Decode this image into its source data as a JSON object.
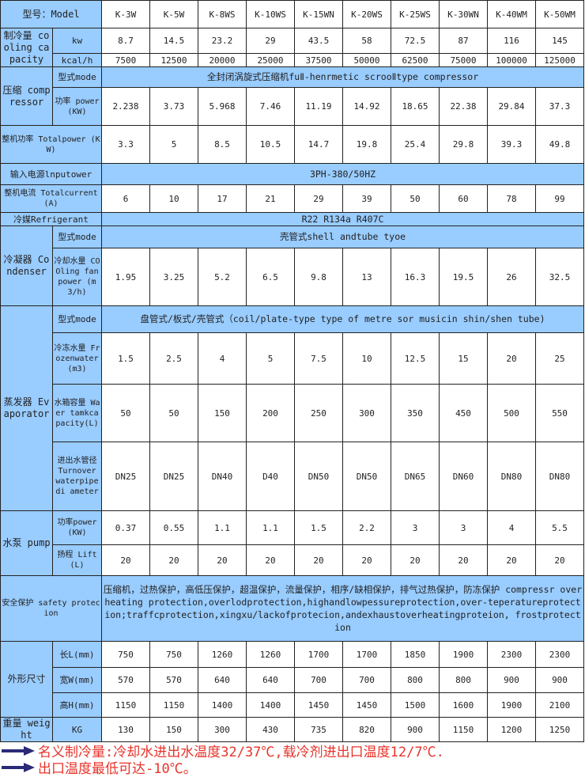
{
  "colors": {
    "header_bg": "#99ccff",
    "note_text": "#e8332a",
    "arrow": "#2b2a78"
  },
  "model_label": "型号：Model",
  "models": [
    "K-3W",
    "K-5W",
    "K-8WS",
    "K-10WS",
    "K-15WN",
    "K-20WS",
    "K-25WS",
    "K-30WN",
    "K-40WM",
    "K-50WM"
  ],
  "rows": [
    {
      "group": "制冷量 cooling capacity",
      "sub": "kw",
      "values": [
        "8.7",
        "14.5",
        "23.2",
        "29",
        "43.5",
        "58",
        "72.5",
        "87",
        "116",
        "145"
      ]
    },
    {
      "sub": "kcal/h",
      "values": [
        "7500",
        "12500",
        "20000",
        "25000",
        "37500",
        "50000",
        "62500",
        "75000",
        "100000",
        "125000"
      ]
    },
    {
      "group": "压缩 comp ressor",
      "sub": "型式mode",
      "span": "全封闭涡旋式压缩机fuⅡ-henrmetic scrooⅡtype compressor"
    },
    {
      "sub": "功率 power (KW)",
      "values": [
        "2.238",
        "3.73",
        "5.968",
        "7.46",
        "11.19",
        "14.92",
        "18.65",
        "22.38",
        "29.84",
        "37.3"
      ]
    },
    {
      "full": "整机功率 Totalpower (KW)",
      "values": [
        "3.3",
        "5",
        "8.5",
        "10.5",
        "14.7",
        "19.8",
        "25.4",
        "29.8",
        "39.3",
        "49.8"
      ]
    },
    {
      "full": "输入电源lnputower",
      "span": "3PH-380/50HZ"
    },
    {
      "full": "整机电流 Totalcurrent(A)",
      "values": [
        "6",
        "10",
        "17",
        "21",
        "29",
        "39",
        "50",
        "60",
        "78",
        "99"
      ]
    },
    {
      "full": "冷媒Refrigerant",
      "span": "R22 R134a R407C"
    },
    {
      "group": "冷凝器 Condenser",
      "sub": "型式mode",
      "span": "壳管式shell andtube tyoe"
    },
    {
      "sub": "冷却水量 COOling fan power (m3/h)",
      "values": [
        "1.95",
        "3.25",
        "5.2",
        "6.5",
        "9.8",
        "13",
        "16.3",
        "19.5",
        "26",
        "32.5"
      ]
    },
    {
      "group": "蒸发器 Evaporator",
      "sub": "型式mode",
      "span": "盘管式/板式/壳管式（coil/plate-type type of metre sor musicin shin/shen tube)"
    },
    {
      "sub": "冷冻水量 Frozenwater (m3)",
      "values": [
        "1.5",
        "2.5",
        "4",
        "5",
        "7.5",
        "10",
        "12.5",
        "15",
        "20",
        "25"
      ]
    },
    {
      "sub": "水箱容量 Waer tamkcapacity(L)",
      "values": [
        "50",
        "50",
        "150",
        "200",
        "250",
        "300",
        "350",
        "450",
        "500",
        "550"
      ]
    },
    {
      "sub": "进出水管径 Turnover waterpipe di ameter",
      "values": [
        "DN25",
        "DN25",
        "DN40",
        "D40",
        "DN50",
        "DN50",
        "DN65",
        "DN60",
        "DN80",
        "DN80"
      ]
    },
    {
      "group": "水泵 pump",
      "sub": "功率power (KW)",
      "values": [
        "0.37",
        "0.55",
        "1.1",
        "1.1",
        "1.5",
        "2.2",
        "3",
        "3",
        "4",
        "5.5"
      ]
    },
    {
      "sub": "扬程 Lift(L)",
      "values": [
        "20",
        "20",
        "20",
        "20",
        "20",
        "20",
        "20",
        "20",
        "20",
        "20"
      ]
    },
    {
      "full": "安全保护 safety protecion",
      "span": "压缩机，过热保护，高低压保护，超温保护，流量保护，相序/缺相保护，排气过热保护，防冻保护 compressr overheating protection,overlodprotection,highandlowpessureprotection,over-teperatureprotection;traffcprotection,xingxu/lackofprotecion,andexhaustoverheatingproteion,     frostprotection"
    },
    {
      "group": "外形尺寸",
      "sub": "长L(mm)",
      "values": [
        "750",
        "750",
        "1260",
        "1260",
        "1700",
        "1700",
        "1850",
        "1900",
        "2300",
        "2300"
      ]
    },
    {
      "sub": "宽W(mm)",
      "values": [
        "570",
        "570",
        "640",
        "640",
        "700",
        "700",
        "800",
        "800",
        "900",
        "900"
      ]
    },
    {
      "sub": "高H(mm)",
      "values": [
        "1150",
        "1150",
        "1400",
        "1400",
        "1450",
        "1450",
        "1500",
        "1600",
        "1900",
        "2100"
      ]
    },
    {
      "group": "重量 weight",
      "sub": "KG",
      "values": [
        "130",
        "150",
        "300",
        "430",
        "735",
        "820",
        "900",
        "1150",
        "1200",
        "1250"
      ]
    }
  ],
  "notes": [
    "名义制冷量:冷却水进出水温度32/37℃,载冷剂进出口温度12/7℃.",
    "出口温度最低可达-10℃。"
  ]
}
